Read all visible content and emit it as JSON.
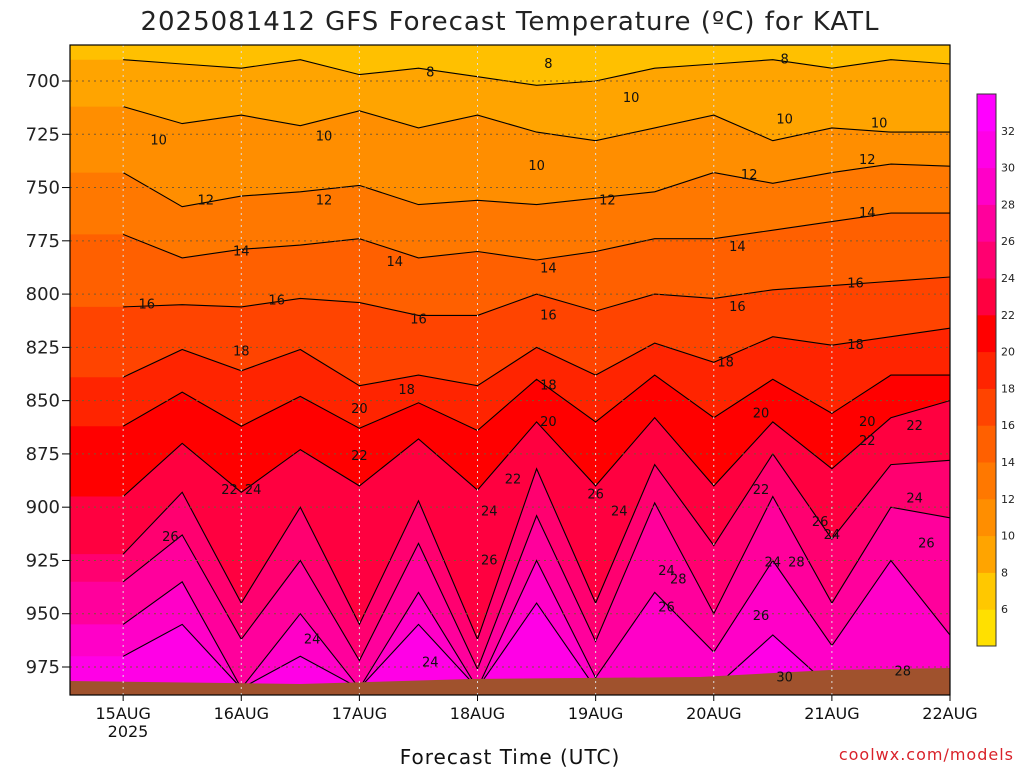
{
  "chart_data": {
    "type": "heatmap",
    "title": "2025081412 GFS Forecast Temperature (ºC) for KATL",
    "xlabel": "Forecast Time (UTC)",
    "ylabel": "",
    "x_ticks": [
      "15AUG",
      "16AUG",
      "17AUG",
      "18AUG",
      "19AUG",
      "20AUG",
      "21AUG",
      "22AUG"
    ],
    "x_year_label": "2025",
    "y_ticks": [
      700,
      725,
      750,
      775,
      800,
      825,
      850,
      875,
      900,
      925,
      950,
      975
    ],
    "ylim": [
      985,
      685
    ],
    "y_scale": "pressure (hPa), inverted",
    "grid": true,
    "colorbar": {
      "ticks": [
        6,
        8,
        10,
        12,
        14,
        16,
        18,
        20,
        22,
        24,
        26,
        28,
        30,
        32
      ],
      "colors": [
        "#ffe000",
        "#ffc800",
        "#ffa400",
        "#ff8e00",
        "#ff7800",
        "#ff6000",
        "#ff4400",
        "#ff2400",
        "#ff0000",
        "#ff0040",
        "#ff0070",
        "#ff009c",
        "#ff00c8",
        "#ff00e6",
        "#ff00ff"
      ],
      "placement": "right"
    },
    "contour_interval": 2,
    "contours": [
      {
        "level": 8,
        "pressure": [
          690,
          692,
          694,
          690,
          697,
          694,
          698,
          702,
          700,
          694,
          692,
          690,
          694,
          690,
          692
        ]
      },
      {
        "level": 10,
        "pressure": [
          712,
          720,
          716,
          721,
          714,
          722,
          716,
          724,
          728,
          722,
          716,
          728,
          722,
          724,
          724
        ]
      },
      {
        "level": 12,
        "pressure": [
          743,
          759,
          754,
          752,
          749,
          758,
          756,
          758,
          755,
          752,
          743,
          748,
          743,
          739,
          740
        ]
      },
      {
        "level": 14,
        "pressure": [
          772,
          783,
          779,
          777,
          774,
          783,
          780,
          784,
          780,
          774,
          774,
          770,
          766,
          762,
          762
        ]
      },
      {
        "level": 16,
        "pressure": [
          806,
          805,
          806,
          802,
          804,
          810,
          810,
          800,
          808,
          800,
          802,
          798,
          796,
          794,
          792
        ]
      },
      {
        "level": 18,
        "pressure": [
          839,
          826,
          836,
          826,
          843,
          838,
          843,
          825,
          838,
          823,
          832,
          820,
          824,
          820,
          816
        ]
      },
      {
        "level": 20,
        "pressure": [
          862,
          846,
          862,
          848,
          863,
          851,
          864,
          840,
          860,
          838,
          858,
          840,
          856,
          838,
          838
        ]
      },
      {
        "level": 22,
        "pressure": [
          895,
          870,
          893,
          873,
          890,
          868,
          892,
          860,
          890,
          858,
          890,
          860,
          882,
          858,
          850
        ]
      },
      {
        "level": 24,
        "pressure": [
          922,
          893,
          945,
          900,
          955,
          897,
          962,
          882,
          945,
          880,
          918,
          875,
          915,
          880,
          878
        ]
      },
      {
        "level": 26,
        "pressure": [
          935,
          913,
          962,
          925,
          972,
          917,
          976,
          904,
          963,
          898,
          950,
          895,
          945,
          900,
          905
        ]
      },
      {
        "level": 28,
        "pressure": [
          955,
          935,
          985,
          950,
          985,
          940,
          985,
          925,
          980,
          940,
          968,
          925,
          965,
          925,
          960
        ]
      },
      {
        "level": 30,
        "pressure": [
          970,
          955,
          985,
          970,
          985,
          955,
          985,
          945,
          985,
          985,
          985,
          960,
          985,
          985,
          985
        ]
      }
    ],
    "contour_x": [
      0,
      0.5,
      1,
      1.5,
      2,
      2.5,
      3,
      3.5,
      4,
      4.5,
      5,
      5.5,
      6,
      6.5,
      7
    ],
    "labels_shown": [
      {
        "text": "8",
        "x": 2.6,
        "p": 696
      },
      {
        "text": "8",
        "x": 3.6,
        "p": 692
      },
      {
        "text": "8",
        "x": 5.6,
        "p": 690
      },
      {
        "text": "10",
        "x": 0.3,
        "p": 728
      },
      {
        "text": "10",
        "x": 1.7,
        "p": 726
      },
      {
        "text": "10",
        "x": 3.5,
        "p": 740
      },
      {
        "text": "10",
        "x": 4.3,
        "p": 708
      },
      {
        "text": "10",
        "x": 5.6,
        "p": 718
      },
      {
        "text": "10",
        "x": 6.4,
        "p": 720
      },
      {
        "text": "12",
        "x": 0.7,
        "p": 756
      },
      {
        "text": "12",
        "x": 1.7,
        "p": 756
      },
      {
        "text": "12",
        "x": 4.1,
        "p": 756
      },
      {
        "text": "12",
        "x": 5.3,
        "p": 744
      },
      {
        "text": "12",
        "x": 6.3,
        "p": 737
      },
      {
        "text": "14",
        "x": 1.0,
        "p": 780
      },
      {
        "text": "14",
        "x": 2.3,
        "p": 785
      },
      {
        "text": "14",
        "x": 3.6,
        "p": 788
      },
      {
        "text": "14",
        "x": 5.2,
        "p": 778
      },
      {
        "text": "14",
        "x": 6.3,
        "p": 762
      },
      {
        "text": "16",
        "x": 0.2,
        "p": 805
      },
      {
        "text": "16",
        "x": 1.3,
        "p": 803
      },
      {
        "text": "16",
        "x": 2.5,
        "p": 812
      },
      {
        "text": "16",
        "x": 3.6,
        "p": 810
      },
      {
        "text": "16",
        "x": 5.2,
        "p": 806
      },
      {
        "text": "16",
        "x": 6.2,
        "p": 795
      },
      {
        "text": "18",
        "x": 1.0,
        "p": 827
      },
      {
        "text": "18",
        "x": 2.4,
        "p": 845
      },
      {
        "text": "18",
        "x": 3.6,
        "p": 843
      },
      {
        "text": "18",
        "x": 5.1,
        "p": 832
      },
      {
        "text": "18",
        "x": 6.2,
        "p": 824
      },
      {
        "text": "20",
        "x": 2.0,
        "p": 854
      },
      {
        "text": "20",
        "x": 3.6,
        "p": 860
      },
      {
        "text": "20",
        "x": 5.4,
        "p": 856
      },
      {
        "text": "20",
        "x": 6.3,
        "p": 860
      },
      {
        "text": "22",
        "x": 0.9,
        "p": 892
      },
      {
        "text": "22",
        "x": 2.0,
        "p": 876
      },
      {
        "text": "22",
        "x": 3.3,
        "p": 887
      },
      {
        "text": "22",
        "x": 5.4,
        "p": 892
      },
      {
        "text": "22",
        "x": 6.3,
        "p": 869
      },
      {
        "text": "22",
        "x": 6.7,
        "p": 862
      },
      {
        "text": "24",
        "x": 1.1,
        "p": 892
      },
      {
        "text": "24",
        "x": 1.6,
        "p": 962
      },
      {
        "text": "24",
        "x": 2.6,
        "p": 973
      },
      {
        "text": "24",
        "x": 3.1,
        "p": 902
      },
      {
        "text": "24",
        "x": 4.2,
        "p": 902
      },
      {
        "text": "24",
        "x": 4.6,
        "p": 930
      },
      {
        "text": "24",
        "x": 5.5,
        "p": 926
      },
      {
        "text": "24",
        "x": 6.0,
        "p": 913
      },
      {
        "text": "24",
        "x": 6.7,
        "p": 896
      },
      {
        "text": "26",
        "x": 0.4,
        "p": 914
      },
      {
        "text": "26",
        "x": 3.1,
        "p": 925
      },
      {
        "text": "26",
        "x": 4.0,
        "p": 894
      },
      {
        "text": "26",
        "x": 4.6,
        "p": 947
      },
      {
        "text": "26",
        "x": 5.4,
        "p": 951
      },
      {
        "text": "26",
        "x": 5.9,
        "p": 907
      },
      {
        "text": "26",
        "x": 6.8,
        "p": 917
      },
      {
        "text": "28",
        "x": 4.7,
        "p": 934
      },
      {
        "text": "28",
        "x": 5.7,
        "p": 926
      },
      {
        "text": "28",
        "x": 6.6,
        "p": 977
      },
      {
        "text": "30",
        "x": 5.6,
        "p": 980
      }
    ]
  },
  "credit": "coolwx.com/models"
}
